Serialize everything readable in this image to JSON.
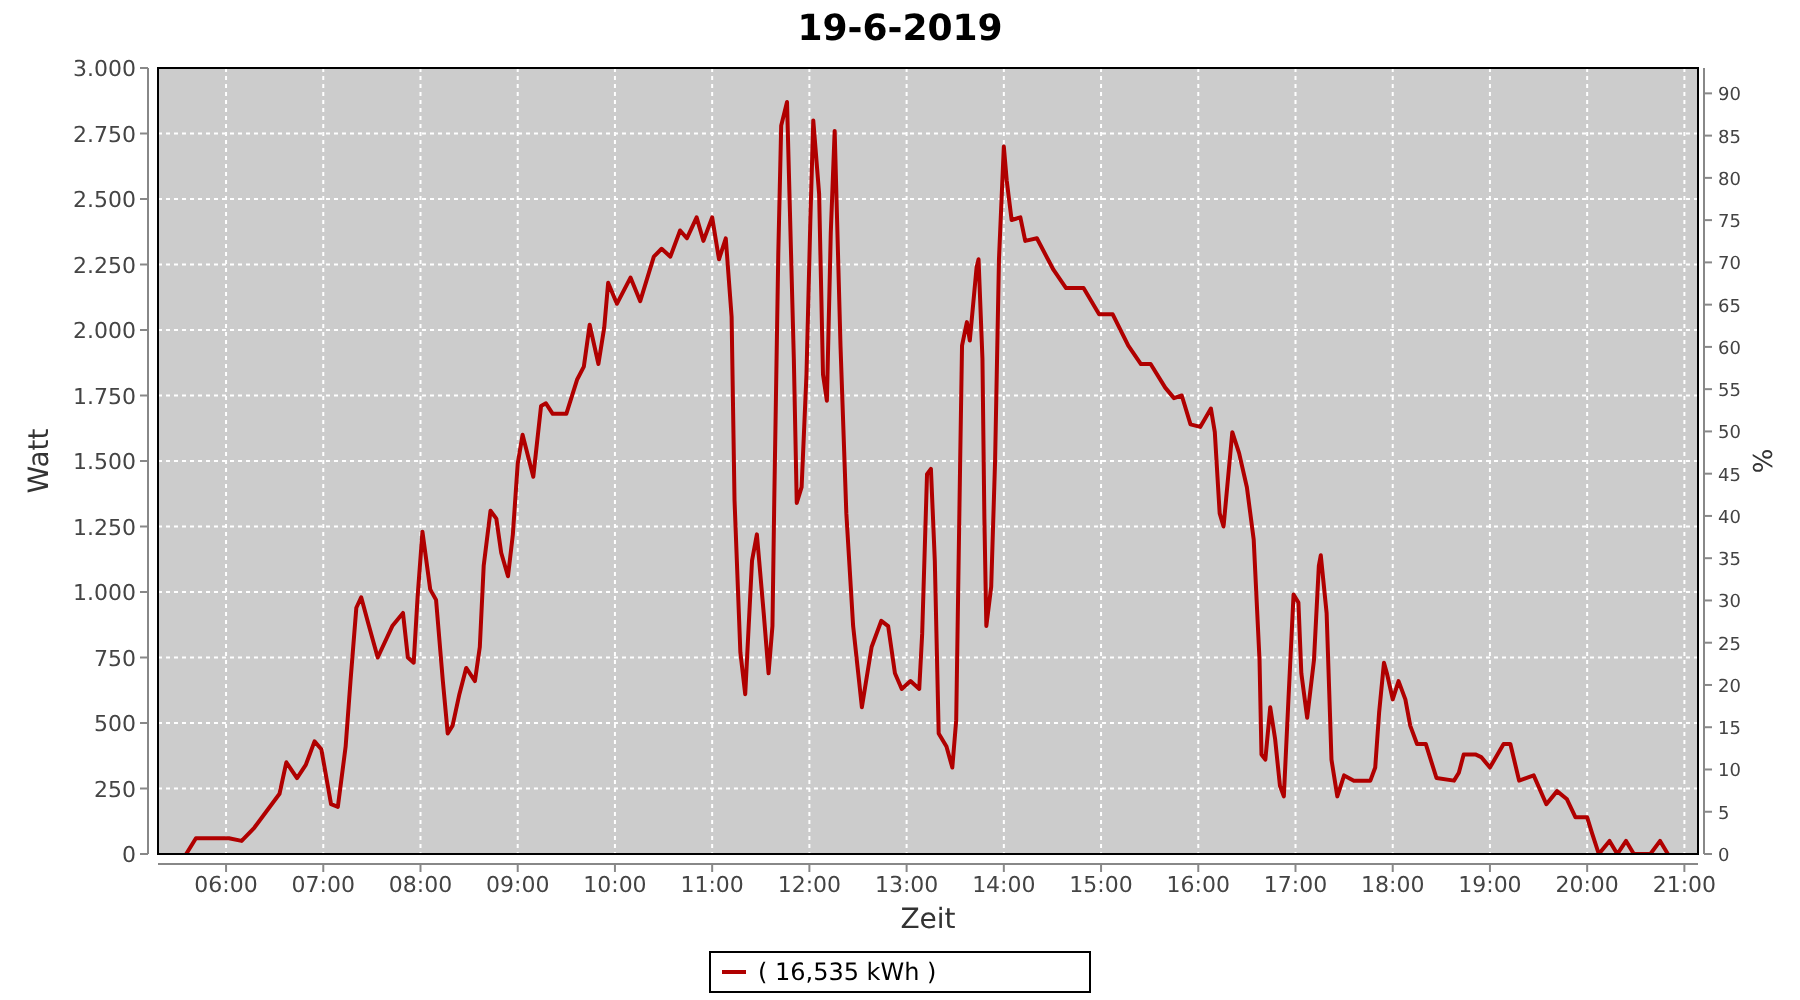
{
  "chart_data": {
    "type": "line",
    "title": "19-6-2019",
    "xlabel": "Zeit",
    "ylabel": "Watt",
    "y2label": "%",
    "xlim": [
      5.3,
      21.14
    ],
    "xticks": [
      {
        "value": 6,
        "label": "06:00"
      },
      {
        "value": 7,
        "label": "07:00"
      },
      {
        "value": 8,
        "label": "08:00"
      },
      {
        "value": 9,
        "label": "09:00"
      },
      {
        "value": 10,
        "label": "10:00"
      },
      {
        "value": 11,
        "label": "11:00"
      },
      {
        "value": 12,
        "label": "12:00"
      },
      {
        "value": 13,
        "label": "13:00"
      },
      {
        "value": 14,
        "label": "14:00"
      },
      {
        "value": 15,
        "label": "15:00"
      },
      {
        "value": 16,
        "label": "16:00"
      },
      {
        "value": 17,
        "label": "17:00"
      },
      {
        "value": 18,
        "label": "18:00"
      },
      {
        "value": 19,
        "label": "19:00"
      },
      {
        "value": 20,
        "label": "20:00"
      },
      {
        "value": 21,
        "label": "21:00"
      }
    ],
    "ylim": [
      0,
      3000
    ],
    "yticks": [
      0,
      250,
      500,
      750,
      {
        "value": 1000,
        "label": "1.000"
      },
      {
        "value": 1250,
        "label": "1.250"
      },
      {
        "value": 1500,
        "label": "1.500"
      },
      {
        "value": 1750,
        "label": "1.750"
      },
      {
        "value": 2000,
        "label": "2.000"
      },
      {
        "value": 2250,
        "label": "2.250"
      },
      {
        "value": 2500,
        "label": "2.500"
      },
      {
        "value": 2750,
        "label": "2.750"
      },
      {
        "value": 3000,
        "label": "3.000"
      }
    ],
    "y2lim": [
      0,
      93
    ],
    "y2ticks": [
      0,
      5,
      10,
      15,
      20,
      25,
      30,
      35,
      40,
      45,
      50,
      55,
      60,
      65,
      70,
      75,
      80,
      85,
      90
    ],
    "grid": true,
    "legend": "bottom",
    "line_style": "solid",
    "series": [
      {
        "name": "( 16,535 kWh )",
        "color": "#b00000",
        "x": [
          5.59,
          5.69,
          6.03,
          6.16,
          6.29,
          6.55,
          6.62,
          6.73,
          6.82,
          6.91,
          6.98,
          7.08,
          7.15,
          7.23,
          7.28,
          7.34,
          7.39,
          7.47,
          7.56,
          7.71,
          7.82,
          7.87,
          7.93,
          7.97,
          8.02,
          8.1,
          8.16,
          8.23,
          8.28,
          8.33,
          8.4,
          8.47,
          8.56,
          8.61,
          8.65,
          8.72,
          8.78,
          8.83,
          8.9,
          8.95,
          9.0,
          9.05,
          9.16,
          9.24,
          9.29,
          9.36,
          9.5,
          9.61,
          9.68,
          9.74,
          9.83,
          9.89,
          9.93,
          10.02,
          10.16,
          10.26,
          10.4,
          10.48,
          10.57,
          10.67,
          10.74,
          10.84,
          10.91,
          11.0,
          11.07,
          11.14,
          11.2,
          11.23,
          11.29,
          11.34,
          11.41,
          11.46,
          11.53,
          11.58,
          11.62,
          11.64,
          11.68,
          11.71,
          11.77,
          11.8,
          11.84,
          11.87,
          11.92,
          11.97,
          12.01,
          12.04,
          12.1,
          12.14,
          12.18,
          12.22,
          12.26,
          12.32,
          12.38,
          12.45,
          12.54,
          12.64,
          12.74,
          12.81,
          12.88,
          12.95,
          13.04,
          13.13,
          13.16,
          13.21,
          13.25,
          13.29,
          13.33,
          13.41,
          13.47,
          13.51,
          13.55,
          13.57,
          13.62,
          13.65,
          13.72,
          13.74,
          13.78,
          13.8,
          13.82,
          13.87,
          13.91,
          13.95,
          14.0,
          14.03,
          14.08,
          14.17,
          14.22,
          14.34,
          14.51,
          14.64,
          14.82,
          14.98,
          15.12,
          15.28,
          15.41,
          15.51,
          15.66,
          15.75,
          15.83,
          15.92,
          16.02,
          16.13,
          16.17,
          16.22,
          16.26,
          16.35,
          16.42,
          16.5,
          16.57,
          16.63,
          16.65,
          16.69,
          16.74,
          16.79,
          16.84,
          16.88,
          16.93,
          16.98,
          17.03,
          17.06,
          17.12,
          17.19,
          17.24,
          17.26,
          17.32,
          17.37,
          17.43,
          17.5,
          17.6,
          17.77,
          17.82,
          17.86,
          17.91,
          17.94,
          18.0,
          18.06,
          18.13,
          18.18,
          18.25,
          18.34,
          18.45,
          18.63,
          18.68,
          18.73,
          18.85,
          18.91,
          19.0,
          19.14,
          19.21,
          19.3,
          19.45,
          19.58,
          19.69,
          19.79,
          19.88,
          20.0,
          20.05,
          20.12,
          20.23,
          20.31,
          20.4,
          20.48,
          20.65,
          20.75,
          20.83
        ],
        "values": [
          0,
          60,
          60,
          50,
          100,
          230,
          350,
          290,
          340,
          430,
          400,
          190,
          180,
          410,
          660,
          940,
          980,
          870,
          750,
          870,
          920,
          750,
          730,
          980,
          1230,
          1010,
          970,
          660,
          460,
          490,
          610,
          710,
          660,
          790,
          1100,
          1310,
          1280,
          1150,
          1060,
          1220,
          1490,
          1600,
          1440,
          1710,
          1720,
          1680,
          1680,
          1810,
          1860,
          2020,
          1870,
          2010,
          2180,
          2100,
          2200,
          2110,
          2280,
          2310,
          2280,
          2380,
          2350,
          2430,
          2340,
          2430,
          2270,
          2350,
          2050,
          1350,
          770,
          610,
          1120,
          1220,
          920,
          690,
          870,
          1380,
          2290,
          2780,
          2870,
          2450,
          1890,
          1340,
          1400,
          1830,
          2420,
          2800,
          2520,
          1830,
          1730,
          2370,
          2760,
          1940,
          1300,
          870,
          560,
          790,
          890,
          870,
          690,
          630,
          660,
          630,
          840,
          1450,
          1470,
          1120,
          460,
          410,
          330,
          510,
          1480,
          1940,
          2030,
          1960,
          2240,
          2270,
          1890,
          1280,
          870,
          1020,
          1500,
          2270,
          2700,
          2570,
          2420,
          2430,
          2340,
          2350,
          2230,
          2160,
          2160,
          2060,
          2060,
          1940,
          1870,
          1870,
          1780,
          1740,
          1750,
          1640,
          1630,
          1700,
          1610,
          1300,
          1250,
          1610,
          1530,
          1400,
          1200,
          740,
          380,
          360,
          560,
          440,
          260,
          220,
          610,
          990,
          960,
          690,
          520,
          740,
          1100,
          1140,
          920,
          360,
          220,
          300,
          280,
          280,
          330,
          540,
          730,
          690,
          590,
          660,
          590,
          490,
          420,
          420,
          290,
          280,
          310,
          380,
          380,
          370,
          330,
          420,
          420,
          280,
          300,
          190,
          240,
          210,
          140,
          140,
          80,
          0,
          50,
          0,
          50,
          0,
          0,
          50,
          0
        ]
      }
    ]
  }
}
